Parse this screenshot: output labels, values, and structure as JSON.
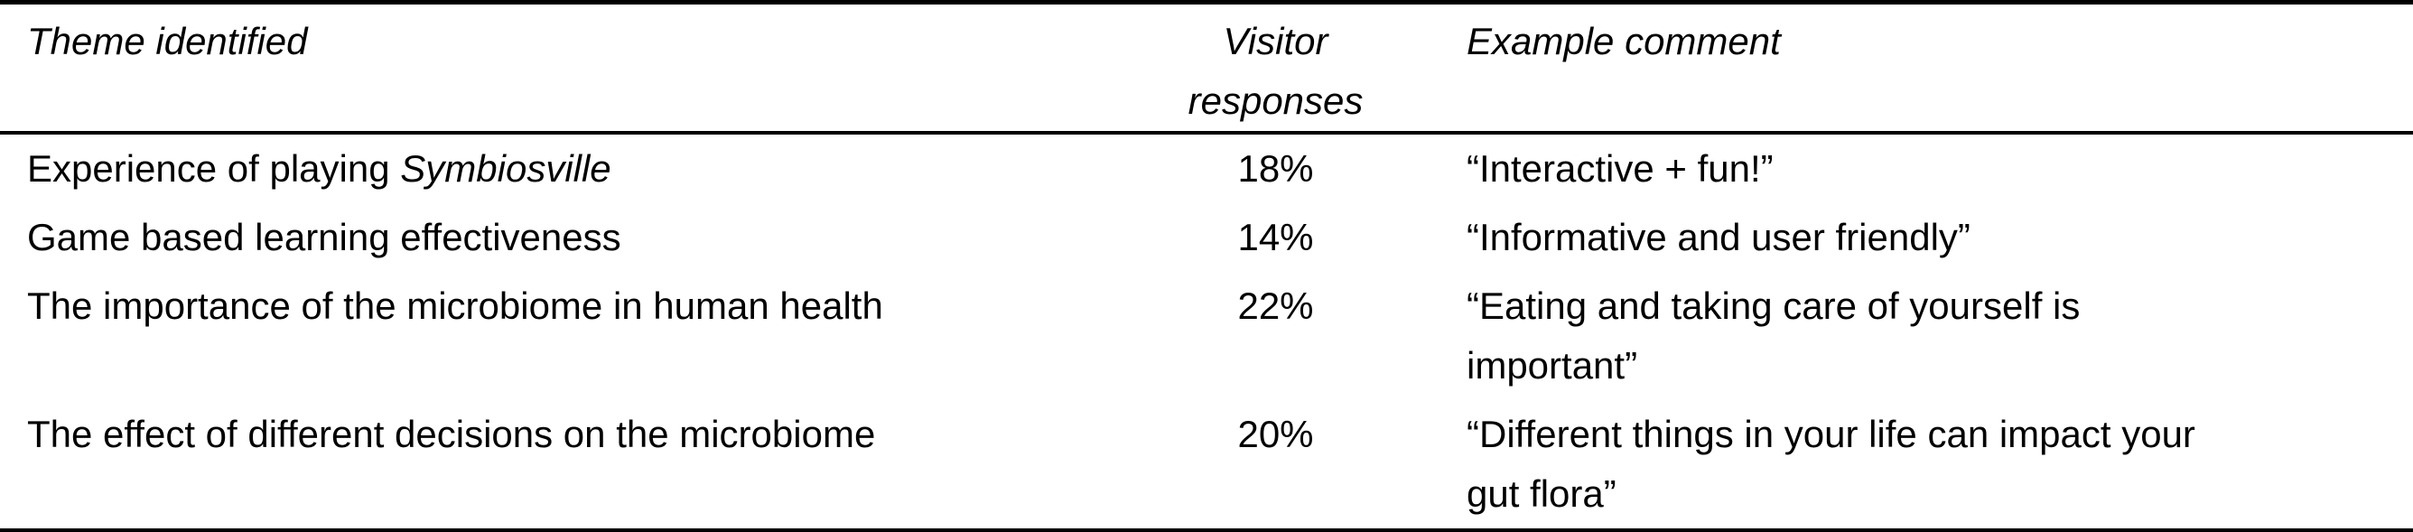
{
  "colors": {
    "text": "#000000",
    "background": "#ffffff",
    "rule": "#000000"
  },
  "table": {
    "headers": {
      "theme": "Theme identified",
      "responses": "Visitor responses",
      "comment": "Example comment"
    },
    "rows": [
      {
        "theme_prefix": "Experience of playing ",
        "theme_italic": "Symbiosville",
        "responses": "18%",
        "comment": "“Interactive + fun!”"
      },
      {
        "theme_prefix": "Game based learning effectiveness",
        "theme_italic": "",
        "responses": "14%",
        "comment": "“Informative and user friendly”"
      },
      {
        "theme_prefix": "The importance of the microbiome in human health",
        "theme_italic": "",
        "responses": "22%",
        "comment": "“Eating and taking care of yourself is important”"
      },
      {
        "theme_prefix": "The effect of different decisions on the microbiome",
        "theme_italic": "",
        "responses": "20%",
        "comment": "“Different things in your life can impact your gut flora”"
      }
    ]
  }
}
